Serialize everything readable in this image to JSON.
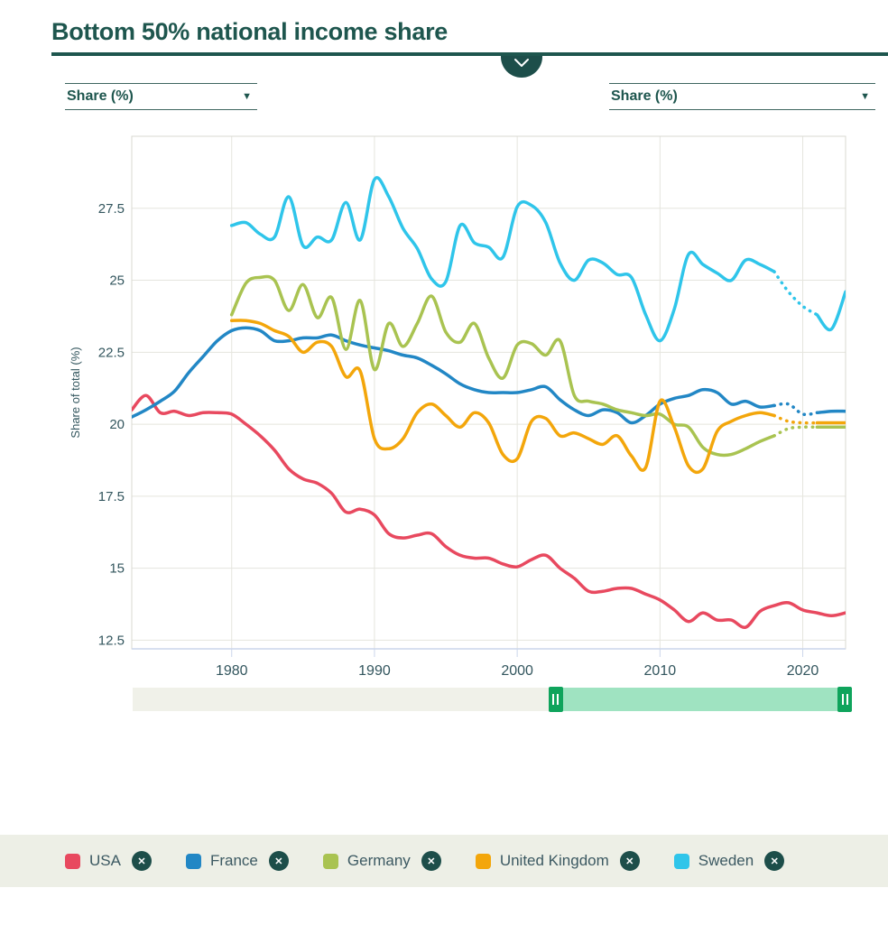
{
  "header": {
    "title": "Bottom 50% national income share"
  },
  "controls": {
    "left_select": {
      "value": "Share (%)"
    },
    "right_select": {
      "value": "Share (%)"
    }
  },
  "icons": {
    "close": "✕",
    "dropdown_arrow": "▼"
  },
  "chart_data": {
    "type": "line",
    "title": "Bottom 50% national income share",
    "xlabel": "",
    "ylabel": "Share of total (%)",
    "xlim": [
      1973,
      2023
    ],
    "ylim": [
      12.2,
      30.0
    ],
    "x_ticks": [
      1980,
      1990,
      2000,
      2010,
      2020
    ],
    "y_ticks": [
      12.5,
      15,
      17.5,
      20,
      22.5,
      25,
      27.5
    ],
    "grid": true,
    "legend_position": "bottom",
    "series": [
      {
        "name": "USA",
        "color": "#e8495f",
        "start_year": 1973,
        "dashed_range": null,
        "values": [
          20.5,
          21.0,
          20.4,
          20.45,
          20.3,
          20.4,
          20.4,
          20.35,
          20.0,
          19.6,
          19.1,
          18.45,
          18.1,
          17.95,
          17.6,
          16.95,
          17.05,
          16.85,
          16.2,
          16.05,
          16.15,
          16.2,
          15.75,
          15.45,
          15.35,
          15.35,
          15.15,
          15.05,
          15.3,
          15.45,
          15.0,
          14.65,
          14.2,
          14.2,
          14.3,
          14.3,
          14.1,
          13.9,
          13.55,
          13.15,
          13.45,
          13.2,
          13.2,
          12.95,
          13.5,
          13.7,
          13.8,
          13.55,
          13.45,
          13.35,
          13.45
        ]
      },
      {
        "name": "France",
        "color": "#2287c5",
        "start_year": 1973,
        "dashed_range": [
          2018,
          2021
        ],
        "values": [
          20.25,
          20.5,
          20.8,
          21.15,
          21.8,
          22.35,
          22.9,
          23.25,
          23.35,
          23.25,
          22.9,
          22.9,
          23.0,
          23.0,
          23.1,
          22.9,
          22.75,
          22.65,
          22.55,
          22.4,
          22.3,
          22.05,
          21.75,
          21.4,
          21.2,
          21.1,
          21.1,
          21.1,
          21.2,
          21.3,
          20.85,
          20.5,
          20.3,
          20.5,
          20.4,
          20.05,
          20.3,
          20.7,
          20.9,
          21.0,
          21.2,
          21.1,
          20.7,
          20.8,
          20.6,
          20.65,
          20.7,
          20.35,
          20.4,
          20.45,
          20.45
        ]
      },
      {
        "name": "Germany",
        "color": "#a9c351",
        "start_year": 1980,
        "dashed_range": [
          2018,
          2021
        ],
        "values": [
          23.8,
          24.9,
          25.1,
          25.0,
          23.95,
          24.85,
          23.7,
          24.4,
          22.6,
          24.3,
          21.9,
          23.5,
          22.7,
          23.5,
          24.45,
          23.2,
          22.85,
          23.5,
          22.3,
          21.6,
          22.75,
          22.8,
          22.4,
          22.9,
          21.0,
          20.8,
          20.7,
          20.5,
          20.4,
          20.3,
          20.35,
          20.0,
          19.9,
          19.2,
          18.95,
          18.95,
          19.15,
          19.4,
          19.6,
          19.85,
          19.9,
          19.9,
          19.9,
          19.9
        ]
      },
      {
        "name": "United Kingdom",
        "color": "#f3a60b",
        "start_year": 1980,
        "dashed_range": [
          2018,
          2021
        ],
        "values": [
          23.6,
          23.6,
          23.5,
          23.25,
          23.05,
          22.5,
          22.85,
          22.7,
          21.65,
          21.85,
          19.5,
          19.15,
          19.5,
          20.4,
          20.7,
          20.3,
          19.9,
          20.4,
          20.05,
          18.95,
          18.8,
          20.1,
          20.2,
          19.6,
          19.7,
          19.5,
          19.3,
          19.6,
          18.9,
          18.5,
          20.8,
          19.9,
          18.55,
          18.45,
          19.75,
          20.1,
          20.3,
          20.4,
          20.3,
          20.1,
          20.05,
          20.05,
          20.05,
          20.05
        ]
      },
      {
        "name": "Sweden",
        "color": "#2fc5ea",
        "start_year": 1980,
        "dashed_range": [
          2018,
          2021
        ],
        "values": [
          26.9,
          27.0,
          26.6,
          26.5,
          27.9,
          26.2,
          26.5,
          26.4,
          27.7,
          26.4,
          28.5,
          27.9,
          26.8,
          26.1,
          25.05,
          24.95,
          26.9,
          26.3,
          26.15,
          25.8,
          27.55,
          27.6,
          27.0,
          25.6,
          25.0,
          25.7,
          25.6,
          25.2,
          25.1,
          23.8,
          22.9,
          24.0,
          25.9,
          25.55,
          25.25,
          25.0,
          25.7,
          25.55,
          25.3,
          24.6,
          24.1,
          23.8,
          23.3,
          24.6
        ]
      }
    ]
  },
  "slider": {
    "from_pct": 58.7,
    "to_pct": 100
  }
}
